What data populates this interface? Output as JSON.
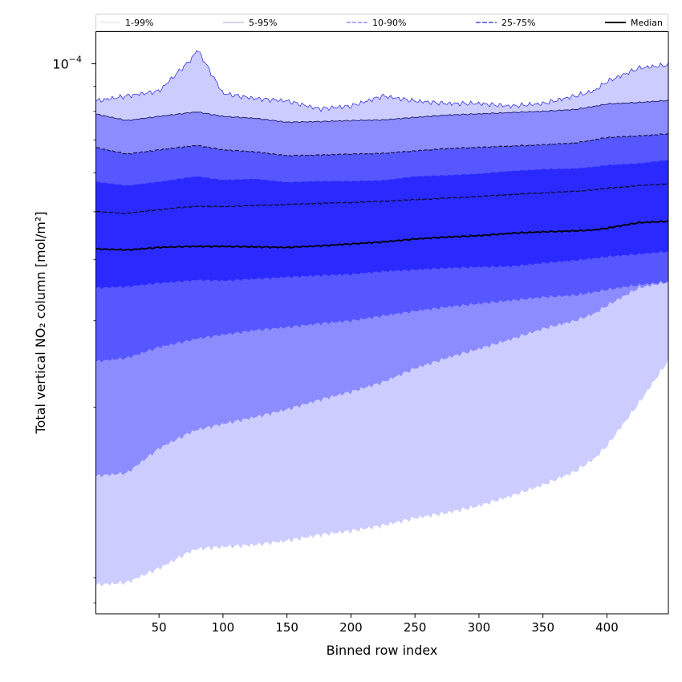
{
  "chart_data": {
    "type": "area",
    "xlabel": "Binned row index",
    "ylabel": "Total vertical NO₂ column [mol/m²]",
    "y_scale": "log",
    "xlim": [
      1,
      448
    ],
    "ylim": [
      7.6e-06,
      0.000116
    ],
    "x_ticks": [
      50,
      100,
      150,
      200,
      250,
      300,
      350,
      400
    ],
    "y_tick_labels": [
      {
        "value": 0.0001,
        "base": "10",
        "exponent": "−4"
      }
    ],
    "legend": {
      "placement": "top",
      "entries": [
        "1-99%",
        "5-95%",
        "10-90%",
        "25-75%",
        "Median"
      ]
    },
    "colors": {
      "band_1_99": "#ccccff",
      "band_5_95": "#8c8cff",
      "band_10_90": "#5757ff",
      "band_25_75": "#2a2aff",
      "edge_1_99": "#2020dd",
      "edge_5_95": "#1a1a66",
      "edge_10_90": "#10103a",
      "edge_25_75": "#0a0a20",
      "median": "#000000"
    },
    "x": [
      1,
      25,
      50,
      75,
      80,
      100,
      125,
      150,
      175,
      200,
      225,
      250,
      275,
      300,
      325,
      350,
      375,
      390,
      400,
      425,
      448
    ],
    "series": [
      {
        "name": "1-99%",
        "kind": "band",
        "lower": [
          8.7e-06,
          8.8e-06,
          9.4e-06,
          1.02e-05,
          1.03e-05,
          1.04e-05,
          1.05e-05,
          1.07e-05,
          1.1e-05,
          1.12e-05,
          1.15e-05,
          1.19e-05,
          1.22e-05,
          1.26e-05,
          1.32e-05,
          1.39e-05,
          1.48e-05,
          1.57e-05,
          1.67e-05,
          2.04e-05,
          2.49e-05
        ],
        "upper": [
          8.4e-05,
          8.6e-05,
          8.8e-05,
          0.000102,
          0.000107,
          8.7e-05,
          8.5e-05,
          8.4e-05,
          8.1e-05,
          8.2e-05,
          8.6e-05,
          8.4e-05,
          8.3e-05,
          8.3e-05,
          8.2e-05,
          8.3e-05,
          8.6e-05,
          8.8e-05,
          9.2e-05,
          9.8e-05,
          9.95e-05
        ]
      },
      {
        "name": "5-95%",
        "kind": "band",
        "lower": [
          1.45e-05,
          1.47e-05,
          1.65e-05,
          1.78e-05,
          1.8e-05,
          1.85e-05,
          1.91e-05,
          1.98e-05,
          2.07e-05,
          2.15e-05,
          2.25e-05,
          2.4e-05,
          2.52e-05,
          2.63e-05,
          2.75e-05,
          2.89e-05,
          3e-05,
          3.1e-05,
          3.22e-05,
          3.5e-05,
          3.6e-05
        ]
      },
      {
        "name": "10-90%",
        "kind": "band",
        "lower": [
          2.48e-05,
          2.52e-05,
          2.65e-05,
          2.74e-05,
          2.76e-05,
          2.81e-05,
          2.87e-05,
          2.91e-05,
          2.96e-05,
          3e-05,
          3.07e-05,
          3.14e-05,
          3.2e-05,
          3.25e-05,
          3.3e-05,
          3.35e-05,
          3.38e-05,
          3.43e-05,
          3.47e-05,
          3.55e-05,
          3.6e-05
        ],
        "upper": [
          6.75e-05,
          6.55e-05,
          6.68e-05,
          6.8e-05,
          6.82e-05,
          6.68e-05,
          6.62e-05,
          6.5e-05,
          6.52e-05,
          6.55e-05,
          6.57e-05,
          6.65e-05,
          6.72e-05,
          6.76e-05,
          6.8e-05,
          6.84e-05,
          6.9e-05,
          7e-05,
          7.08e-05,
          7.13e-05,
          7.2e-05
        ]
      },
      {
        "name": "25-75%",
        "kind": "band",
        "lower": [
          3.5e-05,
          3.52e-05,
          3.58e-05,
          3.62e-05,
          3.63e-05,
          3.62e-05,
          3.65e-05,
          3.68e-05,
          3.71e-05,
          3.73e-05,
          3.78e-05,
          3.81e-05,
          3.84e-05,
          3.86e-05,
          3.87e-05,
          3.93e-05,
          3.98e-05,
          4.02e-05,
          4.05e-05,
          4.1e-05,
          4.15e-05
        ],
        "upper": [
          5.75e-05,
          5.65e-05,
          5.75e-05,
          5.88e-05,
          5.9e-05,
          5.8e-05,
          5.83e-05,
          5.74e-05,
          5.77e-05,
          5.77e-05,
          5.79e-05,
          5.9e-05,
          5.93e-05,
          5.97e-05,
          6.05e-05,
          6.1e-05,
          6.12e-05,
          6.17e-05,
          6.22e-05,
          6.27e-05,
          6.37e-05
        ]
      },
      {
        "name": "Median",
        "kind": "line",
        "values": [
          4.2e-05,
          4.18e-05,
          4.23e-05,
          4.25e-05,
          4.25e-05,
          4.25e-05,
          4.24e-05,
          4.23e-05,
          4.26e-05,
          4.3e-05,
          4.34e-05,
          4.4e-05,
          4.44e-05,
          4.47e-05,
          4.52e-05,
          4.55e-05,
          4.57e-05,
          4.59e-05,
          4.63e-05,
          4.75e-05,
          4.78e-05
        ]
      },
      {
        "name": "25-75% upper edge",
        "kind": "edge",
        "values": [
          5e-05,
          4.96e-05,
          5.05e-05,
          5.12e-05,
          5.13e-05,
          5.12e-05,
          5.15e-05,
          5.17e-05,
          5.2e-05,
          5.22e-05,
          5.25e-05,
          5.29e-05,
          5.33e-05,
          5.37e-05,
          5.42e-05,
          5.46e-05,
          5.5e-05,
          5.54e-05,
          5.58e-05,
          5.65e-05,
          5.7e-05
        ]
      }
    ]
  }
}
